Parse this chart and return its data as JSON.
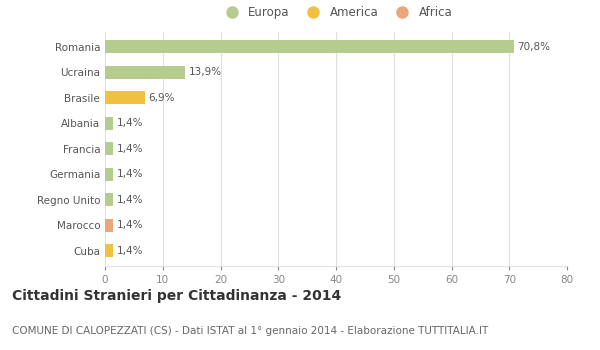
{
  "categories": [
    "Romania",
    "Ucraina",
    "Brasile",
    "Albania",
    "Francia",
    "Germania",
    "Regno Unito",
    "Marocco",
    "Cuba"
  ],
  "values": [
    70.8,
    13.9,
    6.9,
    1.4,
    1.4,
    1.4,
    1.4,
    1.4,
    1.4
  ],
  "colors": [
    "#b5cc8e",
    "#b5cc8e",
    "#f0c040",
    "#b5cc8e",
    "#b5cc8e",
    "#b5cc8e",
    "#b5cc8e",
    "#e8a87c",
    "#f0c040"
  ],
  "labels": [
    "70,8%",
    "13,9%",
    "6,9%",
    "1,4%",
    "1,4%",
    "1,4%",
    "1,4%",
    "1,4%",
    "1,4%"
  ],
  "legend": [
    {
      "label": "Europa",
      "color": "#b5cc8e"
    },
    {
      "label": "America",
      "color": "#f0c040"
    },
    {
      "label": "Africa",
      "color": "#e8a87c"
    }
  ],
  "xlim": [
    0,
    80
  ],
  "xticks": [
    0,
    10,
    20,
    30,
    40,
    50,
    60,
    70,
    80
  ],
  "title": "Cittadini Stranieri per Cittadinanza - 2014",
  "subtitle": "COMUNE DI CALOPEZZATI (CS) - Dati ISTAT al 1° gennaio 2014 - Elaborazione TUTTITALIA.IT",
  "bg_color": "#ffffff",
  "grid_color": "#e0e0e0",
  "bar_height": 0.5,
  "title_fontsize": 10,
  "subtitle_fontsize": 7.5,
  "label_fontsize": 7.5,
  "tick_fontsize": 7.5,
  "legend_fontsize": 8.5
}
